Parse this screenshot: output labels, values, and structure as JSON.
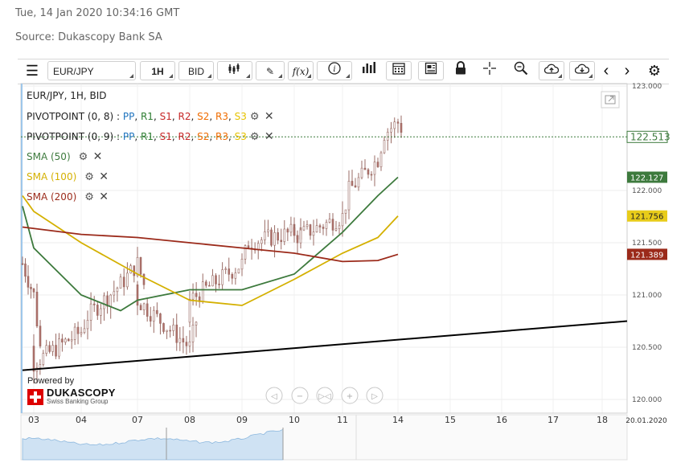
{
  "header": {
    "timestamp": "Tue, 14 Jan 2020 10:34:16 GMT",
    "source": "Source: Dukascopy Bank SA"
  },
  "toolbar": {
    "menu_icon": "hamburger-icon",
    "symbol": "EUR/JPY",
    "timeframe": "1H",
    "price_side": "BID",
    "tools": [
      "candlestick-icon",
      "pencil-icon",
      "function-icon",
      "info-icon",
      "bar-chart-icon",
      "calendar-icon",
      "news-icon",
      "lock-icon",
      "crosshair-icon",
      "zoom-icon",
      "cloud-upload-icon",
      "cloud-download-icon",
      "chevron-left-icon",
      "chevron-right-icon",
      "gear-icon"
    ],
    "function_label": "f(x)"
  },
  "legend": {
    "title": "EUR/JPY, 1H, BID",
    "pivots": [
      {
        "label": "PIVOTPOINT (0, 8)",
        "sep": " : ",
        "items": [
          {
            "t": "PP",
            "c": "#1e73be"
          },
          {
            "t": "R1",
            "c": "#2e7d32"
          },
          {
            "t": "S1",
            "c": "#c62828"
          },
          {
            "t": "R2",
            "c": "#c62828"
          },
          {
            "t": "S2",
            "c": "#ef6c00"
          },
          {
            "t": "R3",
            "c": "#ef6c00"
          },
          {
            "t": "S3",
            "c": "#e6c200"
          }
        ]
      },
      {
        "label": "PIVOTPOINT (0, 9)",
        "sep": " : ",
        "items": [
          {
            "t": "PP",
            "c": "#1e73be"
          },
          {
            "t": "R1",
            "c": "#2e7d32"
          },
          {
            "t": "S1",
            "c": "#c62828"
          },
          {
            "t": "R2",
            "c": "#c62828"
          },
          {
            "t": "S2",
            "c": "#ef6c00"
          },
          {
            "t": "R3",
            "c": "#ef6c00"
          },
          {
            "t": "S3",
            "c": "#e6c200"
          }
        ]
      }
    ],
    "smas": [
      {
        "label": "SMA (50)",
        "color": "#3d7a3d"
      },
      {
        "label": "SMA (100)",
        "color": "#d4b000"
      },
      {
        "label": "SMA (200)",
        "color": "#9b2a1a"
      }
    ]
  },
  "branding": {
    "powered_by": "Powered by",
    "name": "DUKASCOPY",
    "tagline": "Swiss Banking Group"
  },
  "chart_data": {
    "type": "line",
    "title": "EUR/JPY, 1H, BID",
    "yticks": [
      "123.000",
      "122.000",
      "121.500",
      "121.000",
      "120.500",
      "120.000"
    ],
    "xticks": [
      "03",
      "04",
      "07",
      "08",
      "09",
      "10",
      "11",
      "14",
      "15",
      "16",
      "17",
      "18"
    ],
    "date_label": "20.01.2020",
    "ylim": [
      119.98,
      123.05
    ],
    "current_price": "122.513",
    "sma_badges": [
      {
        "name": "SMA (50)",
        "value": "122.127",
        "color": "#3d7a3d"
      },
      {
        "name": "SMA (100)",
        "value": "121.756",
        "color": "#e8cc1a"
      },
      {
        "name": "SMA (200)",
        "value": "121.389",
        "color": "#9b2a1a"
      }
    ],
    "price_series": [
      {
        "x": "02",
        "y": 121.3
      },
      {
        "x": "03",
        "y": 121.0
      },
      {
        "x": "03",
        "y": 120.5
      },
      {
        "x": "03",
        "y": 120.35
      },
      {
        "x": "04",
        "y": 120.65
      },
      {
        "x": "04",
        "y": 120.8
      },
      {
        "x": "06",
        "y": 121.1
      },
      {
        "x": "07",
        "y": 121.3
      },
      {
        "x": "07",
        "y": 121.1
      },
      {
        "x": "07",
        "y": 120.95
      },
      {
        "x": "08",
        "y": 120.5
      },
      {
        "x": "08",
        "y": 120.75
      },
      {
        "x": "08",
        "y": 120.95
      },
      {
        "x": "09",
        "y": 121.3
      },
      {
        "x": "09",
        "y": 121.5
      },
      {
        "x": "10",
        "y": 121.6
      },
      {
        "x": "10",
        "y": 121.6
      },
      {
        "x": "10",
        "y": 121.55
      },
      {
        "x": "11",
        "y": 121.75
      },
      {
        "x": "11",
        "y": 122.0
      },
      {
        "x": "13",
        "y": 122.3
      },
      {
        "x": "13",
        "y": 122.55
      },
      {
        "x": "14",
        "y": 122.65
      },
      {
        "x": "14",
        "y": 122.55
      }
    ],
    "series": [
      {
        "name": "SMA (50)",
        "color": "#3d7a3d",
        "values": [
          {
            "x": "02",
            "y": 121.85
          },
          {
            "x": "03",
            "y": 121.45
          },
          {
            "x": "04",
            "y": 121.0
          },
          {
            "x": "06",
            "y": 120.85
          },
          {
            "x": "07",
            "y": 120.95
          },
          {
            "x": "08",
            "y": 121.05
          },
          {
            "x": "09",
            "y": 121.05
          },
          {
            "x": "10",
            "y": 121.2
          },
          {
            "x": "11",
            "y": 121.6
          },
          {
            "x": "13",
            "y": 121.95
          },
          {
            "x": "14",
            "y": 122.127
          }
        ]
      },
      {
        "name": "SMA (100)",
        "color": "#d4b000",
        "values": [
          {
            "x": "02",
            "y": 121.95
          },
          {
            "x": "03",
            "y": 121.8
          },
          {
            "x": "04",
            "y": 121.5
          },
          {
            "x": "07",
            "y": 121.2
          },
          {
            "x": "08",
            "y": 120.95
          },
          {
            "x": "09",
            "y": 120.9
          },
          {
            "x": "10",
            "y": 121.15
          },
          {
            "x": "11",
            "y": 121.4
          },
          {
            "x": "13",
            "y": 121.55
          },
          {
            "x": "14",
            "y": 121.756
          }
        ]
      },
      {
        "name": "SMA (200)",
        "color": "#9b2a1a",
        "values": [
          {
            "x": "02",
            "y": 121.65
          },
          {
            "x": "04",
            "y": 121.58
          },
          {
            "x": "07",
            "y": 121.55
          },
          {
            "x": "08",
            "y": 121.5
          },
          {
            "x": "09",
            "y": 121.45
          },
          {
            "x": "10",
            "y": 121.4
          },
          {
            "x": "11",
            "y": 121.32
          },
          {
            "x": "13",
            "y": 121.33
          },
          {
            "x": "14",
            "y": 121.389
          }
        ]
      }
    ],
    "trendline": {
      "color": "#000000",
      "from": {
        "x": "02",
        "y": 120.28
      },
      "to": {
        "x": "20.01.2020",
        "y": 120.75
      }
    },
    "grid": true,
    "legend_position": "top-left"
  }
}
